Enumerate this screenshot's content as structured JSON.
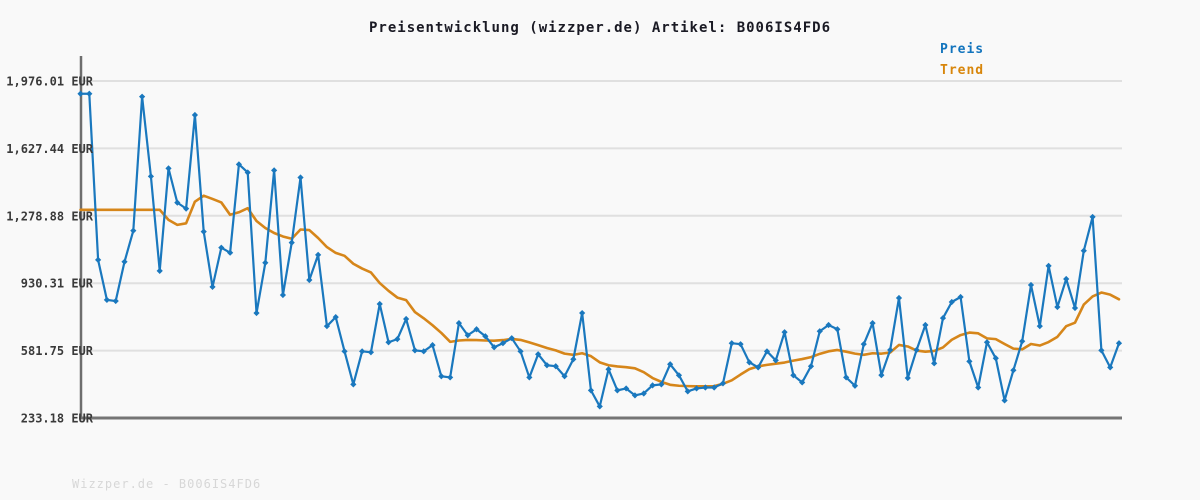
{
  "title": "Preisentwicklung (wizzper.de) Artikel: B006IS4FD6",
  "watermark": "Wizzper.de - B006IS4FD6",
  "legend": {
    "price_label": "Preis",
    "trend_label": "Trend"
  },
  "colors": {
    "price_line": "#1a78be",
    "trend_line": "#d6861a",
    "price_text": "#1274bd",
    "trend_text": "#d8860b",
    "grid": "#e0e0e0",
    "axis": "#6e6e6e",
    "background": "#f9f9f9",
    "title_text": "#1a1a24",
    "tick_text": "#3a3a3a",
    "watermark_text": "#d7d7d7"
  },
  "chart_data": {
    "type": "line",
    "title": "Preisentwicklung (wizzper.de) Artikel: B006IS4FD6",
    "currency": "EUR",
    "grid": true,
    "legend_position": "top-right",
    "ylim": [
      233.18,
      1976.01
    ],
    "y_ticks": [
      {
        "label": "1,976.01 EUR",
        "value": 1976.01
      },
      {
        "label": "1,627.44 EUR",
        "value": 1627.44
      },
      {
        "label": "1,278.88 EUR",
        "value": 1278.88
      },
      {
        "label": "930.31 EUR",
        "value": 930.31
      },
      {
        "label": "581.75 EUR",
        "value": 581.75
      },
      {
        "label": "233.18 EUR",
        "value": 233.18
      }
    ],
    "series": [
      {
        "name": "Preis",
        "color": "#1a78be",
        "marker": "diamond",
        "values": [
          1910,
          1910,
          1051,
          844,
          838,
          1041,
          1202,
          1895,
          1483,
          994,
          1524,
          1347,
          1316,
          1800,
          1197,
          911,
          1114,
          1088,
          1545,
          1503,
          776,
          1036,
          1514,
          869,
          1140,
          1477,
          947,
          1077,
          708,
          755,
          578,
          407,
          578,
          573,
          823,
          625,
          641,
          745,
          583,
          578,
          610,
          449,
          443,
          724,
          661,
          692,
          656,
          599,
          620,
          646,
          578,
          443,
          563,
          506,
          501,
          449,
          537,
          776,
          376,
          293,
          485,
          376,
          386,
          350,
          360,
          402,
          407,
          511,
          454,
          371,
          386,
          391,
          391,
          412,
          620,
          615,
          521,
          495,
          578,
          531,
          677,
          454,
          417,
          501,
          682,
          714,
          692,
          443,
          400,
          615,
          724,
          455,
          585,
          854,
          440,
          585,
          714,
          516,
          750,
          833,
          859,
          526,
          391,
          625,
          542,
          324,
          480,
          630,
          921,
          708,
          1020,
          807,
          952,
          802,
          1098,
          1273,
          583,
          495,
          620
        ]
      },
      {
        "name": "Trend",
        "color": "#d6861a",
        "marker": "none",
        "values": [
          1310,
          1310,
          1310,
          1310,
          1310,
          1310,
          1310,
          1310,
          1310,
          1310,
          1258,
          1232,
          1240,
          1352,
          1383,
          1366,
          1348,
          1284,
          1297,
          1318,
          1252,
          1216,
          1190,
          1172,
          1160,
          1208,
          1205,
          1164,
          1117,
          1087,
          1072,
          1031,
          1006,
          986,
          931,
          891,
          856,
          843,
          781,
          749,
          713,
          673,
          627,
          634,
          637,
          636,
          634,
          633,
          636,
          642,
          637,
          624,
          610,
          595,
          583,
          566,
          560,
          568,
          553,
          521,
          506,
          500,
          496,
          490,
          470,
          440,
          420,
          405,
          400,
          398,
          397,
          397,
          398,
          410,
          428,
          458,
          486,
          500,
          508,
          514,
          520,
          530,
          538,
          548,
          565,
          578,
          585,
          576,
          566,
          560,
          568,
          566,
          572,
          611,
          603,
          582,
          576,
          580,
          598,
          638,
          662,
          675,
          671,
          645,
          641,
          616,
          592,
          588,
          616,
          608,
          626,
          653,
          708,
          726,
          820,
          862,
          882,
          871,
          847
        ]
      }
    ]
  }
}
